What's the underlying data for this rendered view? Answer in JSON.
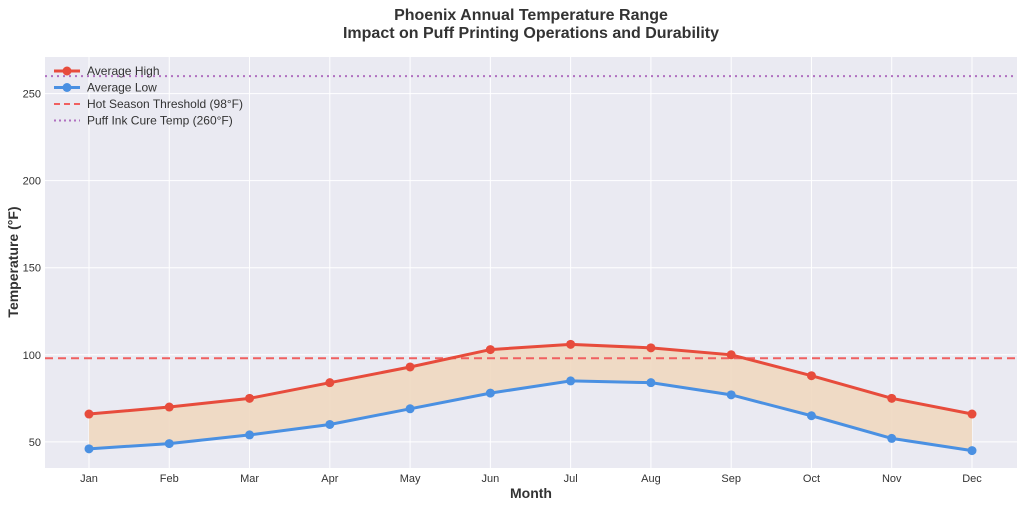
{
  "chart_data": {
    "type": "line",
    "title": "Phoenix Annual Temperature Range",
    "subtitle": "Impact on Puff Printing Operations and Durability",
    "xlabel": "Month",
    "ylabel": "Temperature (°F)",
    "categories": [
      "Jan",
      "Feb",
      "Mar",
      "Apr",
      "May",
      "Jun",
      "Jul",
      "Aug",
      "Sep",
      "Oct",
      "Nov",
      "Dec"
    ],
    "series": [
      {
        "name": "Average High",
        "color": "#e74c3c",
        "values": [
          66,
          70,
          75,
          84,
          93,
          103,
          106,
          104,
          100,
          88,
          75,
          66
        ]
      },
      {
        "name": "Average Low",
        "color": "#4a90e2",
        "values": [
          46,
          49,
          54,
          60,
          69,
          78,
          85,
          84,
          77,
          65,
          52,
          45
        ]
      }
    ],
    "reference_lines": [
      {
        "name": "Hot Season Threshold (98°F)",
        "value": 98,
        "style": "dashed",
        "color": "#f06060"
      },
      {
        "name": "Puff Ink Cure Temp (260°F)",
        "value": 260,
        "style": "dotted",
        "color": "#b070c0"
      }
    ],
    "fill_between": {
      "color": "#f0d8c0"
    },
    "yticks": [
      50,
      100,
      150,
      200,
      250
    ],
    "ylim": [
      35,
      271
    ],
    "grid": true,
    "legend_placement": "top-left",
    "background": "#eaeaf2"
  }
}
